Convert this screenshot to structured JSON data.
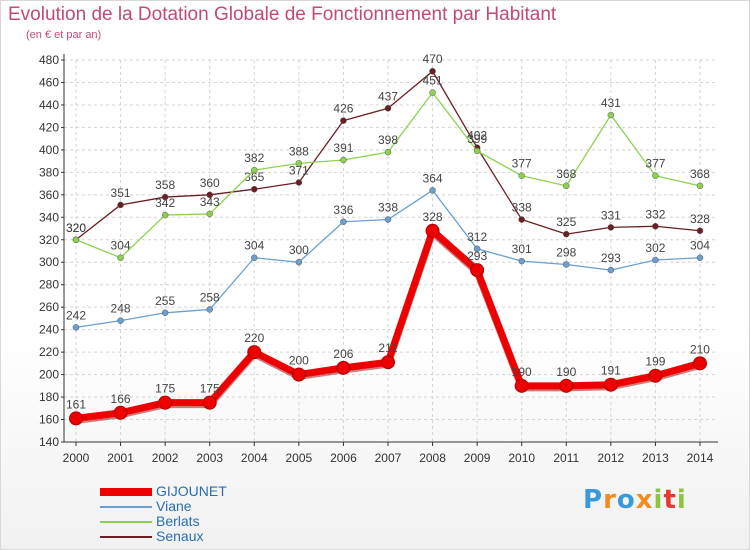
{
  "header": {
    "title": "Evolution de la Dotation Globale de Fonctionnement par Habitant",
    "subtitle": "(en € et par an)"
  },
  "chart_data": {
    "type": "line",
    "x": [
      2000,
      2001,
      2002,
      2003,
      2004,
      2005,
      2006,
      2007,
      2008,
      2009,
      2010,
      2011,
      2012,
      2013,
      2014
    ],
    "ylim": [
      140,
      480
    ],
    "yticks": [
      140,
      160,
      180,
      200,
      220,
      240,
      260,
      280,
      300,
      320,
      340,
      360,
      380,
      400,
      420,
      440,
      460,
      480
    ],
    "grid": true,
    "legend_position": "bottom-left",
    "series": [
      {
        "name": "Senaux",
        "color": "#6b1f24",
        "values": [
          320,
          351,
          358,
          360,
          365,
          371,
          426,
          437,
          470,
          402,
          338,
          325,
          331,
          332,
          328
        ]
      },
      {
        "name": "Berlats",
        "color": "#8fd14f",
        "values": [
          320,
          304,
          342,
          343,
          382,
          388,
          391,
          398,
          451,
          399,
          377,
          368,
          431,
          377,
          368
        ]
      },
      {
        "name": "Viane",
        "color": "#6a9fd0",
        "values": [
          242,
          248,
          255,
          258,
          304,
          300,
          336,
          338,
          364,
          312,
          301,
          298,
          293,
          302,
          304
        ]
      },
      {
        "name": "GIJOUNET",
        "color": "#ee0000",
        "values": [
          161,
          166,
          175,
          175,
          220,
          200,
          206,
          211,
          328,
          293,
          190,
          190,
          191,
          199,
          210
        ]
      }
    ],
    "legend_order": [
      "GIJOUNET",
      "Viane",
      "Berlats",
      "Senaux"
    ]
  },
  "logo": {
    "letters": [
      "P",
      "r",
      "o",
      "x",
      "i",
      "t",
      "i"
    ],
    "colors": [
      "#3a9ad9",
      "#f28c1e",
      "#3a9ad9",
      "#f28c1e",
      "#8cc63f",
      "#e8382f",
      "#8cc63f"
    ]
  }
}
